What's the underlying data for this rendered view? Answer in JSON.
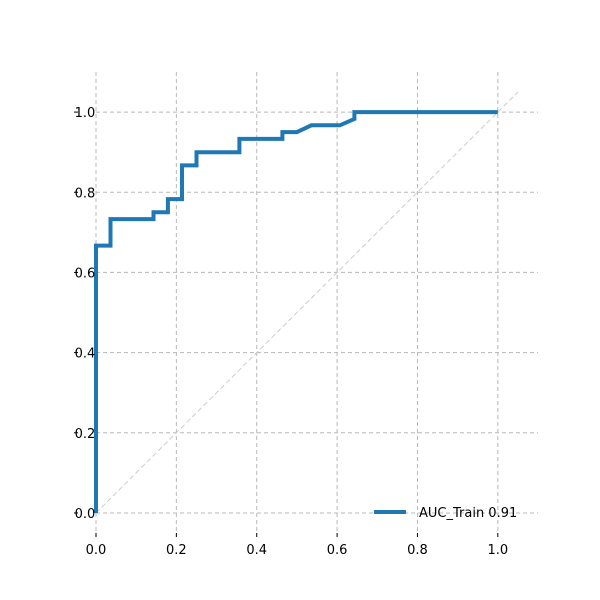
{
  "chart_data": {
    "type": "line",
    "title": "",
    "xlabel": "",
    "ylabel": "",
    "xlim": [
      0.0,
      1.1
    ],
    "ylim": [
      -0.05,
      1.1
    ],
    "xticks": [
      0.0,
      0.2,
      0.4,
      0.6,
      0.8,
      1.0
    ],
    "xtick_labels": [
      "0.0",
      "0.2",
      "0.4",
      "0.6",
      "0.8",
      "1.0"
    ],
    "yticks": [
      0.0,
      0.2,
      0.4,
      0.6,
      0.8,
      1.0
    ],
    "ytick_labels": [
      "0.0",
      "0.2",
      "0.4",
      "0.6",
      "0.8",
      "1.0"
    ],
    "grid": true,
    "legend_position": "lower-right",
    "series": [
      {
        "name": "AUC_Train 0.91",
        "color": "#1f77b4",
        "x": [
          0.0,
          0.0,
          0.0,
          0.036,
          0.036,
          0.143,
          0.143,
          0.179,
          0.179,
          0.214,
          0.214,
          0.25,
          0.25,
          0.357,
          0.357,
          0.464,
          0.464,
          0.5,
          0.536,
          0.607,
          0.643,
          0.643,
          1.0
        ],
        "y": [
          0.0,
          0.667,
          0.667,
          0.667,
          0.733,
          0.733,
          0.75,
          0.75,
          0.783,
          0.783,
          0.867,
          0.867,
          0.9,
          0.9,
          0.933,
          0.933,
          0.95,
          0.95,
          0.967,
          0.967,
          0.983,
          1.0,
          1.0
        ]
      }
    ],
    "reference_line": {
      "x": [
        0.0,
        1.05
      ],
      "y": [
        0.0,
        1.05
      ],
      "color": "#cccccc",
      "style": "dashed"
    }
  }
}
